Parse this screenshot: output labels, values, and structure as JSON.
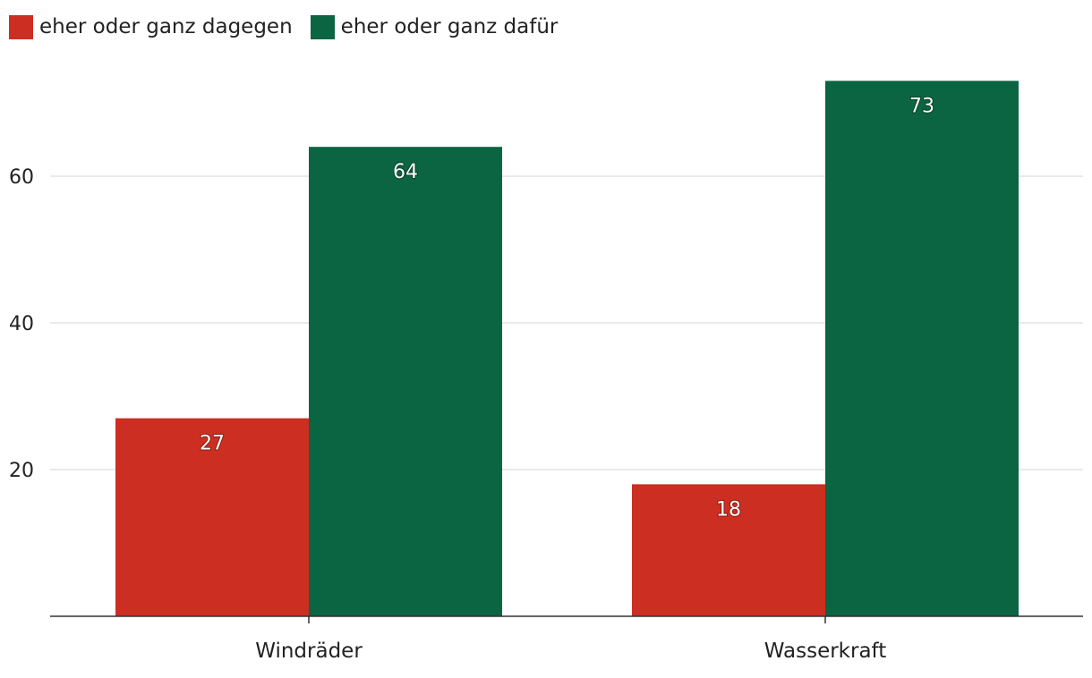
{
  "chart_data": {
    "type": "bar",
    "categories": [
      "Windräder",
      "Wasserkraft"
    ],
    "series": [
      {
        "name": "eher oder ganz dagegen",
        "values": [
          27,
          18
        ],
        "color": "#cc2e22"
      },
      {
        "name": "eher oder ganz dafür",
        "values": [
          64,
          73
        ],
        "color": "#0b6442"
      }
    ],
    "yticks": [
      20,
      40,
      60
    ],
    "ylim": [
      0,
      73
    ],
    "grid": true,
    "legend_position": "top-left"
  }
}
